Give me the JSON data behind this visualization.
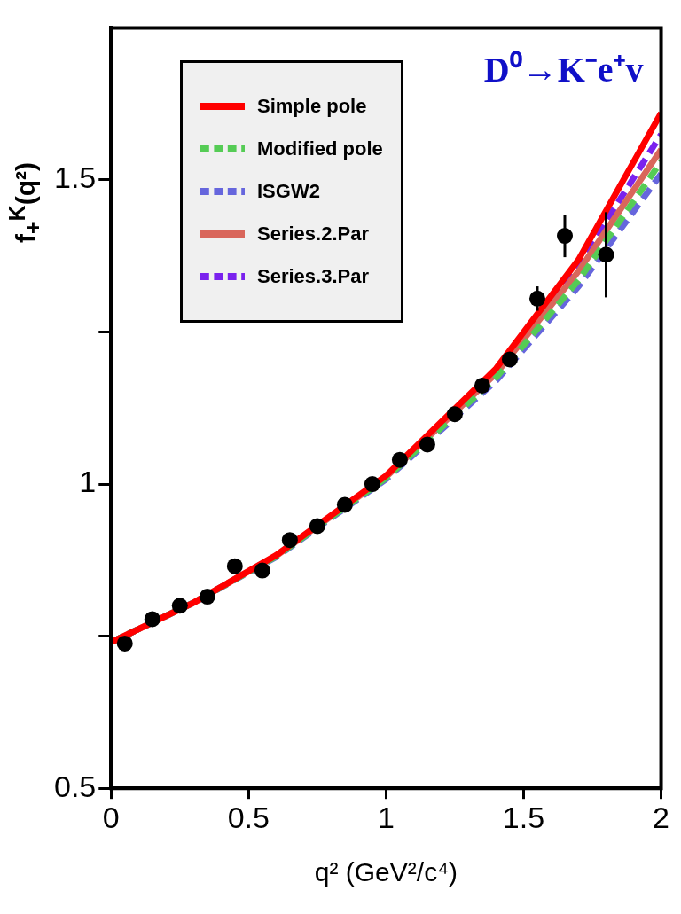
{
  "chart_data": {
    "type": "line",
    "xlabel": "q² (GeV²/c⁴)",
    "ylabel": "f$_{+}$$^{K}$(q²)",
    "annotations": [
      "D⁰→K⁻e⁺v"
    ],
    "xlim": [
      0,
      2
    ],
    "xticks": [
      0,
      0.5,
      1,
      1.5,
      2
    ],
    "ylim": [
      0.5,
      1.75
    ],
    "yticks": [
      0.5,
      {
        "value": 0.75,
        "label": null
      },
      1,
      {
        "value": 1.25,
        "label": null
      },
      1.5
    ],
    "grid": false,
    "legend": "top left",
    "series": [
      {
        "name": "Simple pole",
        "color": "#ff0000",
        "line_style": "solid",
        "marker": "none",
        "x": [
          0,
          0.3,
          0.6,
          1,
          1.4,
          1.7,
          2
        ],
        "values": [
          0.74,
          0.805,
          0.883,
          1.014,
          1.19,
          1.369,
          1.61
        ]
      },
      {
        "name": "Modified pole",
        "color": "#55cc55",
        "line_style": "dashed",
        "marker": "none",
        "x": [
          0,
          0.3,
          0.6,
          1,
          1.4,
          1.7,
          2
        ],
        "values": [
          0.74,
          0.805,
          0.881,
          1.01,
          1.175,
          1.335,
          1.53
        ]
      },
      {
        "name": "ISGW2",
        "color": "#6666dd",
        "line_style": "dashed",
        "marker": "none",
        "x": [
          0,
          0.3,
          0.6,
          1,
          1.4,
          1.7,
          2
        ],
        "values": [
          0.74,
          0.805,
          0.88,
          1.008,
          1.17,
          1.325,
          1.51
        ]
      },
      {
        "name": "Series.2.Par",
        "color": "#d9665b",
        "line_style": "solid",
        "marker": "none",
        "x": [
          0,
          0.3,
          0.6,
          1,
          1.4,
          1.7,
          2
        ],
        "values": [
          0.74,
          0.805,
          0.882,
          1.012,
          1.182,
          1.35,
          1.55
        ]
      },
      {
        "name": "Series.3.Par",
        "color": "#7a22ee",
        "line_style": "dashed",
        "marker": "none",
        "x": [
          0,
          0.3,
          0.6,
          1,
          1.4,
          1.7,
          2
        ],
        "values": [
          0.74,
          0.805,
          0.882,
          1.013,
          1.185,
          1.36,
          1.575
        ]
      },
      {
        "type": "scatter",
        "color": "#000000",
        "marker": "circle",
        "x": [
          0.05,
          0.15,
          0.25,
          0.35,
          0.45,
          0.55,
          0.65,
          0.75,
          0.85,
          0.95,
          1.05,
          1.15,
          1.25,
          1.35,
          1.45,
          1.55,
          1.65,
          1.8
        ],
        "values": [
          0.738,
          0.778,
          0.8,
          0.815,
          0.865,
          0.858,
          0.908,
          0.931,
          0.966,
          1.0,
          1.04,
          1.065,
          1.115,
          1.162,
          1.205,
          1.305,
          1.408,
          1.377
        ],
        "errors": [
          null,
          null,
          null,
          null,
          null,
          null,
          null,
          null,
          null,
          null,
          null,
          null,
          null,
          null,
          null,
          0.02,
          0.035,
          0.07
        ]
      }
    ]
  }
}
